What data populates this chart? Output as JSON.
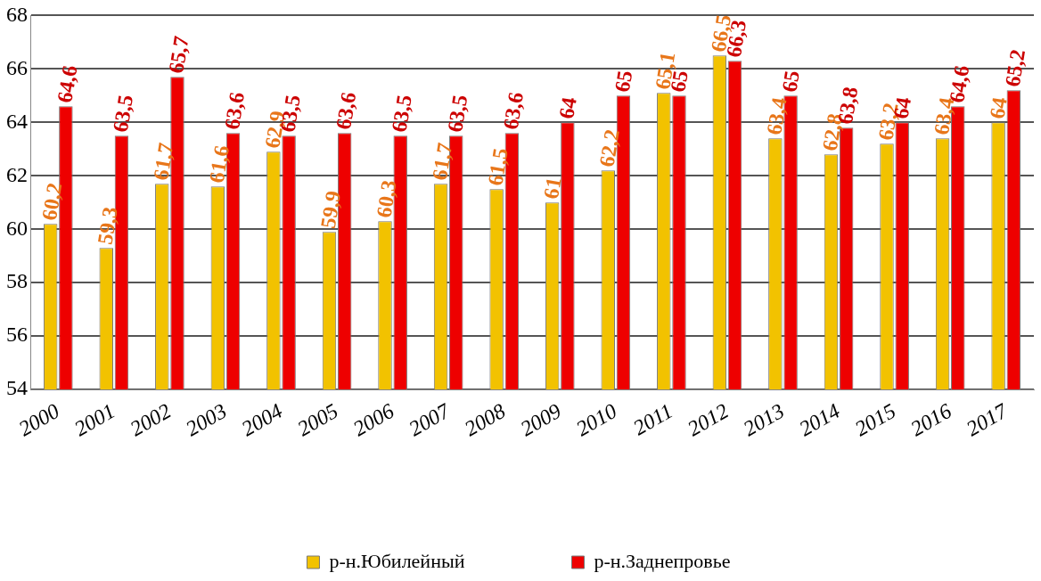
{
  "chart_data": {
    "type": "bar",
    "categories": [
      "2000",
      "2001",
      "2002",
      "2003",
      "2004",
      "2005",
      "2006",
      "2007",
      "2008",
      "2009",
      "2010",
      "2011",
      "2012",
      "2013",
      "2014",
      "2015",
      "2016",
      "2017"
    ],
    "series": [
      {
        "name": "р-н.Юбилейный",
        "color": "#f2c200",
        "values": [
          60.2,
          59.3,
          61.7,
          61.6,
          62.9,
          59.9,
          60.3,
          61.7,
          61.5,
          61,
          62.2,
          65.1,
          66.5,
          63.4,
          62.8,
          63.2,
          63.4,
          64
        ],
        "value_labels": [
          "60,2",
          "59,3",
          "61,7",
          "61,6",
          "62,9",
          "59,9",
          "60,3",
          "61,7",
          "61,5",
          "61",
          "62,2",
          "65,1",
          "66,5",
          "63,4",
          "62,8",
          "63,2",
          "63,4",
          "64"
        ]
      },
      {
        "name": "р-н.Заднепровье",
        "color": "#ee0000",
        "values": [
          64.6,
          63.5,
          65.7,
          63.6,
          63.5,
          63.6,
          63.5,
          63.5,
          63.6,
          64,
          65,
          65,
          66.3,
          65,
          63.8,
          64,
          64.6,
          65.2
        ],
        "value_labels": [
          "64,6",
          "63,5",
          "65,7",
          "63,6",
          "63,5",
          "63,6",
          "63,5",
          "63,5",
          "63,6",
          "64",
          "65",
          "65",
          "66,3",
          "65",
          "63,8",
          "64",
          "64,6",
          "65,2"
        ]
      }
    ],
    "ylim": [
      54,
      68
    ],
    "yticks": [
      54,
      56,
      58,
      60,
      62,
      64,
      66,
      68
    ],
    "grid": "y",
    "legend": "bottom"
  }
}
